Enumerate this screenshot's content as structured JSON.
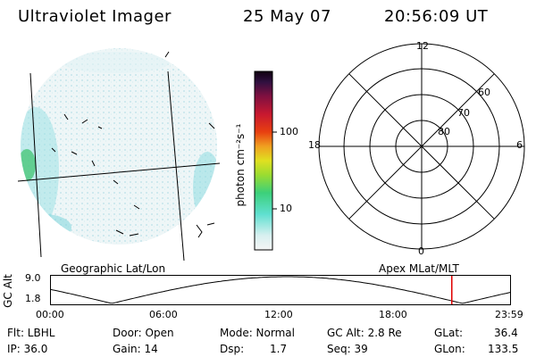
{
  "header": {
    "title": "Ultraviolet Imager",
    "date": "25 May 07",
    "time": "20:56:09 UT"
  },
  "colorbar": {
    "label": "photon cm⁻²s⁻¹",
    "ticks": [
      "100",
      "10"
    ]
  },
  "polar": {
    "mlt_labels": {
      "top": "12",
      "left": "18",
      "right": "6",
      "bottom": "0"
    },
    "lat_labels": [
      "60",
      "70",
      "80"
    ]
  },
  "map_labels": {
    "left": "Geographic Lat/Lon",
    "right": "Apex MLat/MLT"
  },
  "timeline": {
    "ylabel": "GC Alt",
    "yticks": [
      "9.0",
      "1.8"
    ],
    "xticks": [
      "00:00",
      "06:00",
      "12:00",
      "18:00",
      "23:59"
    ],
    "current_hours": 20.936,
    "ymin": 1.8,
    "ymax": 9.0
  },
  "status": {
    "flt": "Flt: LBHL",
    "ip": "IP: 36.0",
    "door": "Door: Open",
    "gain": "Gain: 14",
    "mode": "Mode: Normal",
    "dsp_label": "Dsp:",
    "dsp_value": "1.7",
    "gc_alt": "GC Alt: 2.8 Re",
    "seq": "Seq: 39",
    "glat": "GLat:",
    "glat_value": "36.4",
    "glon": "GLon:",
    "glon_value": "133.5"
  }
}
